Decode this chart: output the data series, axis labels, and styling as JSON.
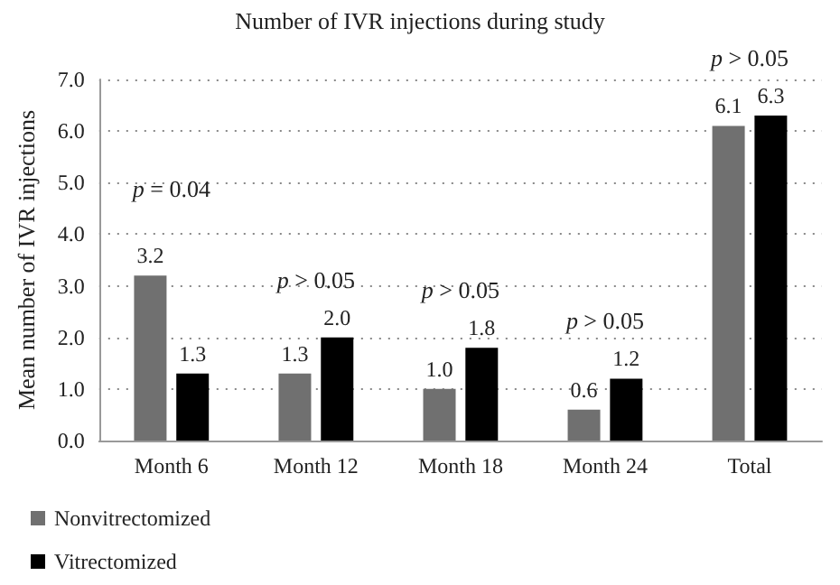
{
  "chart_data": {
    "type": "bar",
    "title": "Number of IVR injections during study",
    "ylabel": "Mean number of IVR injections",
    "categories": [
      "Month 6",
      "Month 12",
      "Month 18",
      "Month 24",
      "Total"
    ],
    "series": [
      {
        "name": "Nonvitrectomized",
        "color": "#707070",
        "values": [
          3.2,
          1.3,
          1.0,
          0.6,
          6.1
        ],
        "value_labels": [
          "3.2",
          "1.3",
          "1.0",
          "0.6",
          "6.1"
        ]
      },
      {
        "name": "Vitrectomized",
        "color": "#000000",
        "values": [
          1.3,
          2.0,
          1.8,
          1.2,
          6.3
        ],
        "value_labels": [
          "1.3",
          "2.0",
          "1.8",
          "1.2",
          "6.3"
        ]
      }
    ],
    "ylim": [
      0,
      7
    ],
    "yticks": [
      {
        "value": 0,
        "label": "0.0"
      },
      {
        "value": 1,
        "label": "1.0"
      },
      {
        "value": 2,
        "label": "2.0"
      },
      {
        "value": 3,
        "label": "3.0"
      },
      {
        "value": 4,
        "label": "4.0"
      },
      {
        "value": 5,
        "label": "5.0"
      },
      {
        "value": 6,
        "label": "6.0"
      },
      {
        "value": 7,
        "label": "7.0"
      }
    ],
    "grid": "y",
    "legend": "bottom left",
    "annotations": [
      "p = 0.04",
      "p > 0.05",
      "p > 0.05",
      "p > 0.05",
      "p > 0.05"
    ]
  }
}
